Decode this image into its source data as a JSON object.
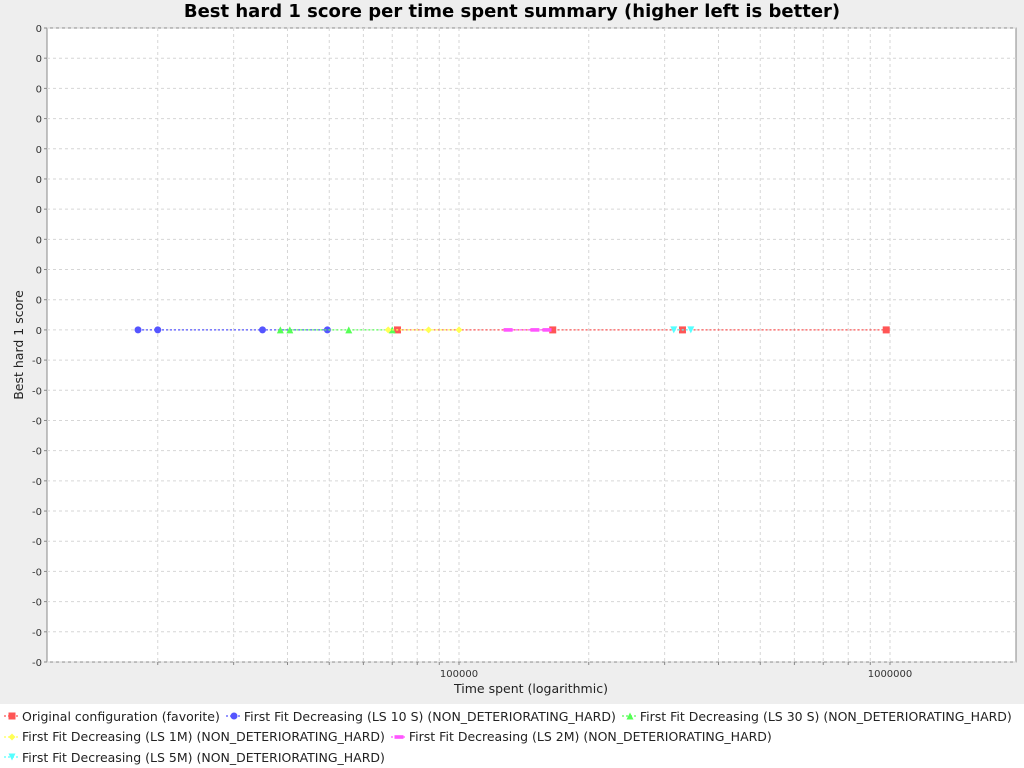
{
  "chart_data": {
    "type": "scatter",
    "title": "Best hard 1 score per time spent summary (higher left is better)",
    "xlabel": "Time spent (logarithmic)",
    "ylabel": "Best hard 1 score",
    "x_scale": "log",
    "x_tick_labels": [
      {
        "value": 100000,
        "label": "100000"
      },
      {
        "value": 1000000,
        "label": "1000000"
      }
    ],
    "y_tick_labels": [
      "0",
      "0",
      "0",
      "0",
      "0",
      "0",
      "0",
      "0",
      "0",
      "0",
      "0",
      "-0",
      "-0",
      "-0",
      "-0",
      "-0",
      "-0",
      "-0",
      "-0",
      "-0",
      "-0",
      "-0"
    ],
    "grid": true,
    "legend_position": "bottom",
    "series": [
      {
        "name": "Original configuration (favorite)",
        "color": "#ff5555",
        "marker": "square",
        "x": [
          72000,
          165000,
          330000,
          980000
        ],
        "y": [
          0,
          0,
          0,
          0
        ]
      },
      {
        "name": "First Fit Decreasing (LS 10 S) (NON_DETERIORATING_HARD)",
        "color": "#5555ff",
        "marker": "circle",
        "x": [
          18000,
          20000,
          35000,
          49500
        ],
        "y": [
          0,
          0,
          0,
          0
        ]
      },
      {
        "name": "First Fit Decreasing (LS 30 S) (NON_DETERIORATING_HARD)",
        "color": "#55ff55",
        "marker": "triangle-up",
        "x": [
          38500,
          40500,
          55500,
          70000
        ],
        "y": [
          0,
          0,
          0,
          0
        ]
      },
      {
        "name": "First Fit Decreasing (LS 1M) (NON_DETERIORATING_HARD)",
        "color": "#ffff55",
        "marker": "diamond",
        "x": [
          68500,
          85000,
          100000
        ],
        "y": [
          0,
          0,
          0
        ]
      },
      {
        "name": "First Fit Decreasing (LS 2M) (NON_DETERIORATING_HARD)",
        "color": "#ff55ff",
        "marker": "hbar",
        "x": [
          130000,
          150000,
          160000
        ],
        "y": [
          0,
          0,
          0
        ]
      },
      {
        "name": "First Fit Decreasing (LS 5M) (NON_DETERIORATING_HARD)",
        "color": "#55ffff",
        "marker": "triangle-down",
        "x": [
          315000,
          345000
        ],
        "y": [
          0,
          0
        ]
      }
    ]
  }
}
